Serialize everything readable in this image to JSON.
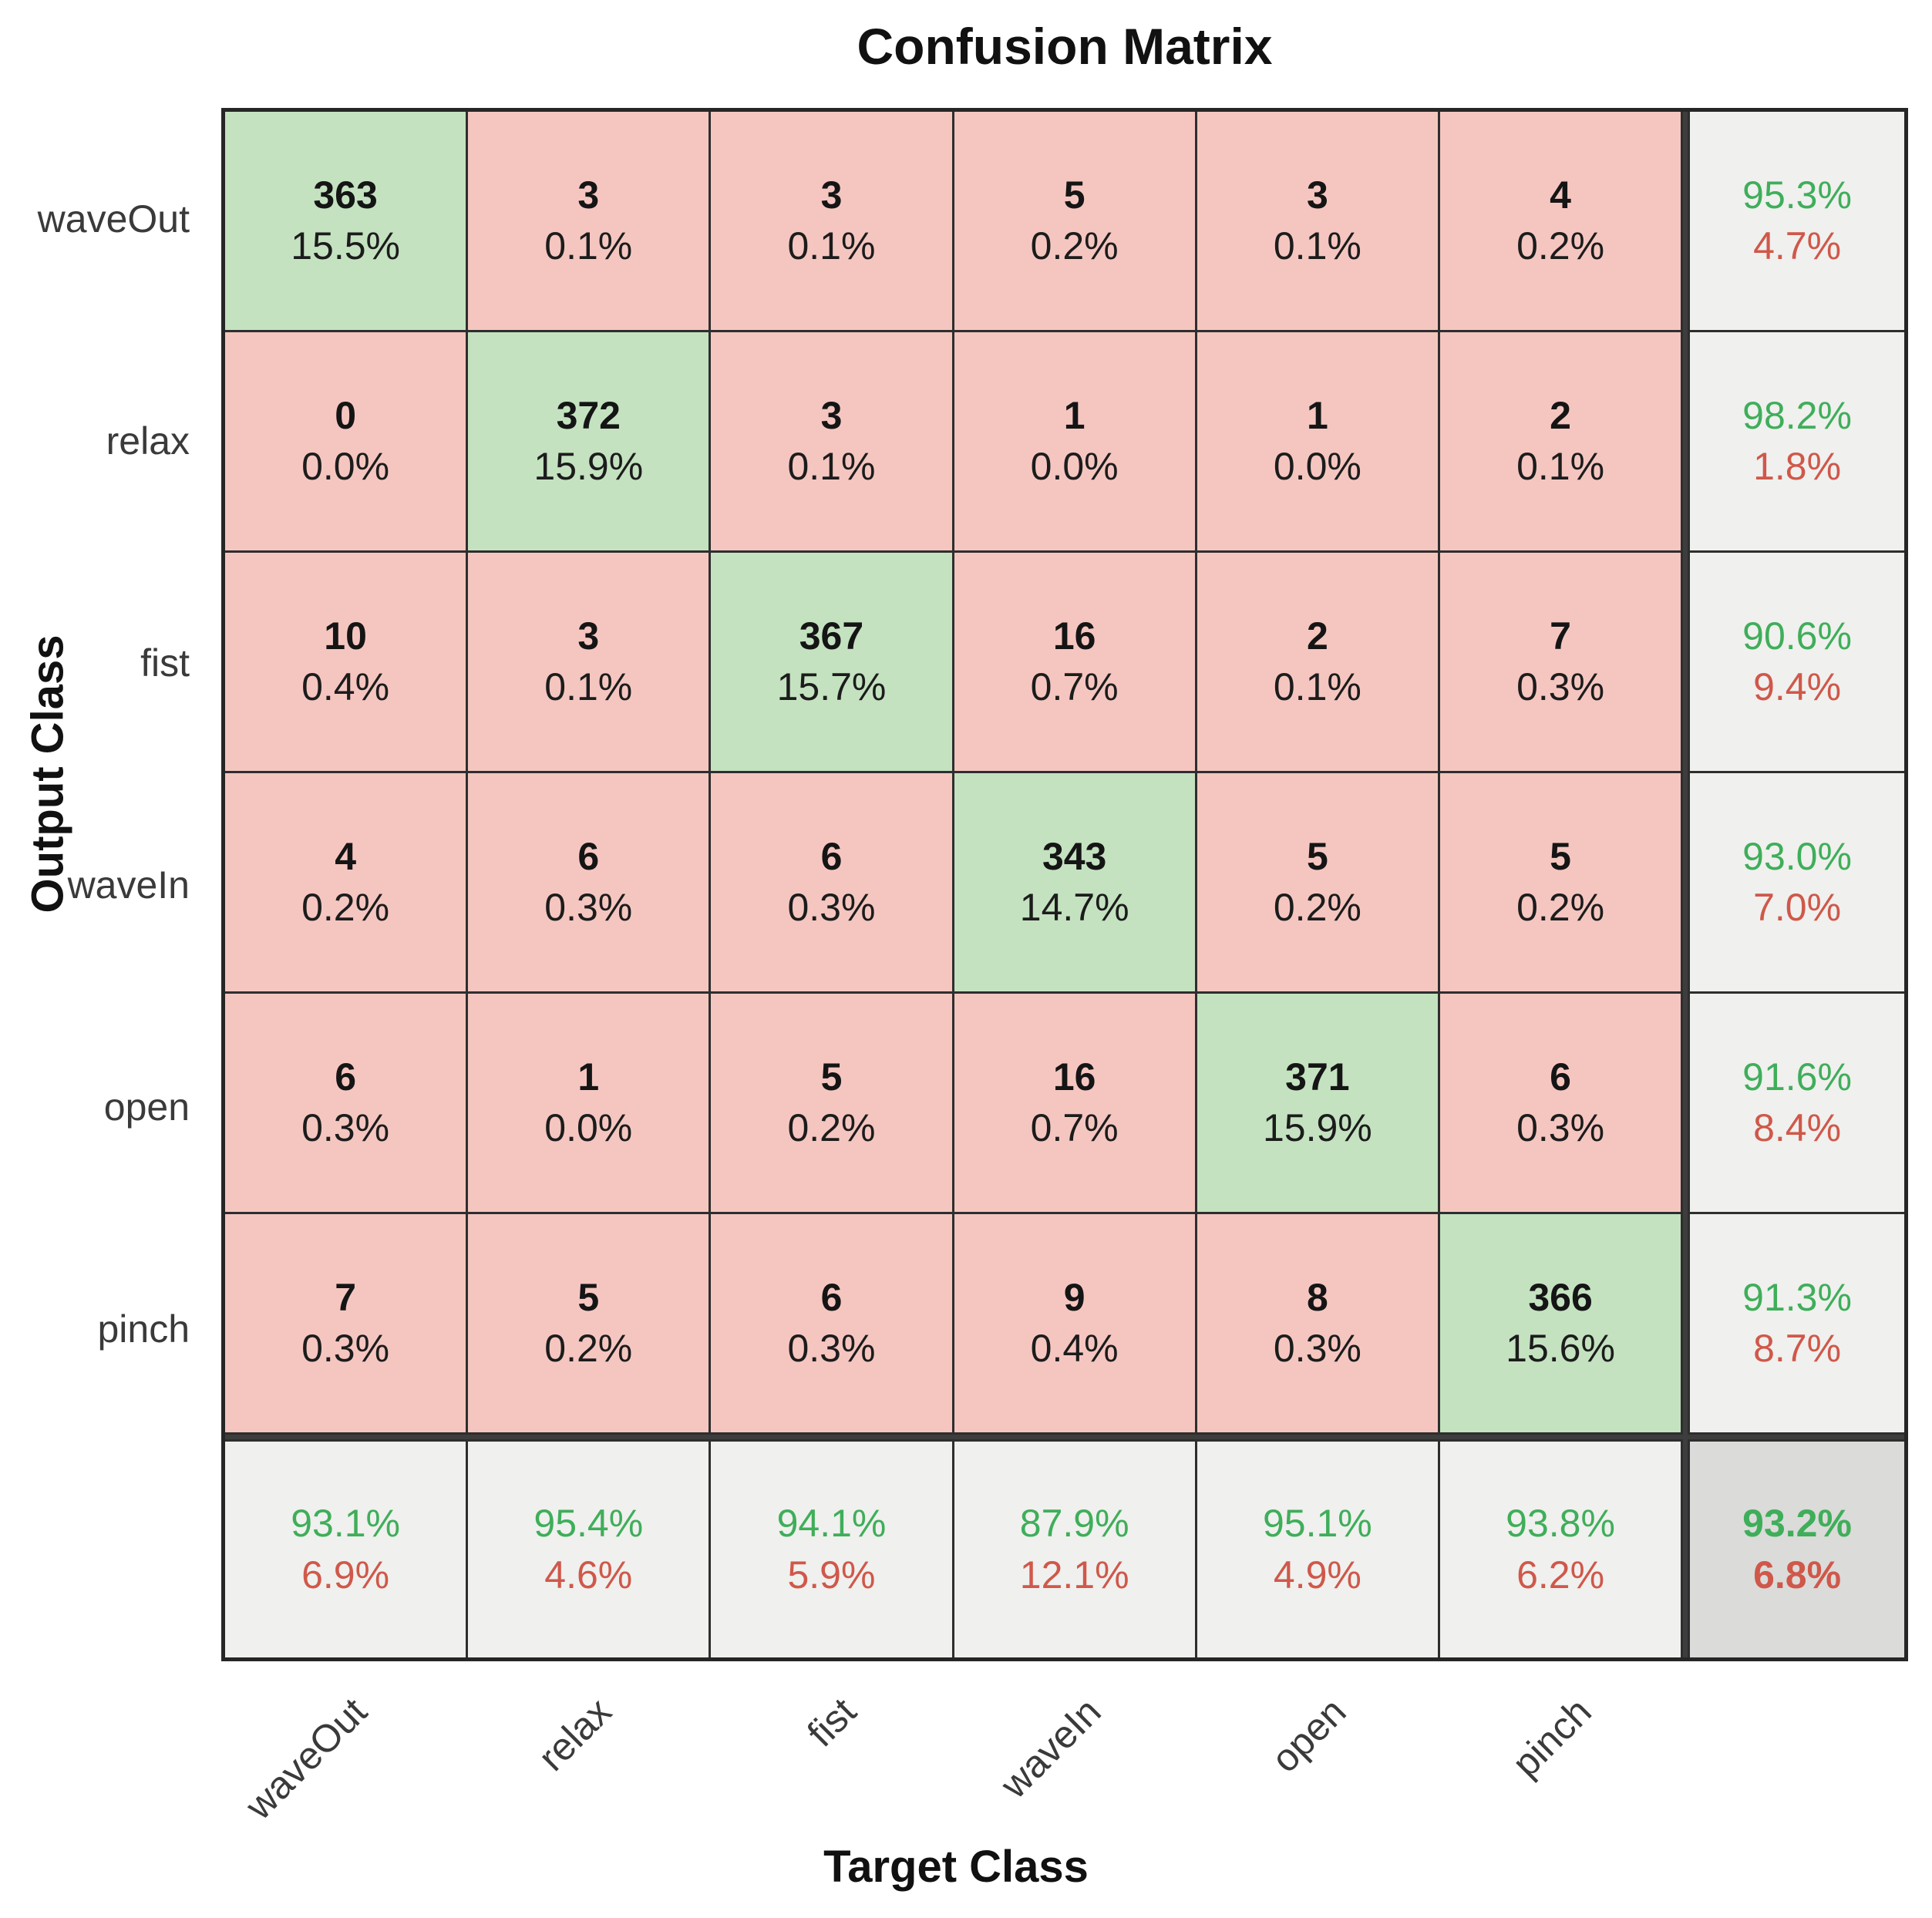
{
  "title": "Confusion Matrix",
  "x_axis_label": "Target Class",
  "y_axis_label": "Output Class",
  "classes": [
    "waveOut",
    "relax",
    "fist",
    "waveIn",
    "open",
    "pinch"
  ],
  "chart_data": {
    "type": "heatmap",
    "title": "Confusion Matrix",
    "xlabel": "Target Class",
    "ylabel": "Output Class",
    "x_categories": [
      "waveOut",
      "relax",
      "fist",
      "waveIn",
      "open",
      "pinch"
    ],
    "y_categories": [
      "waveOut",
      "relax",
      "fist",
      "waveIn",
      "open",
      "pinch"
    ],
    "counts": [
      [
        363,
        3,
        3,
        5,
        3,
        4
      ],
      [
        0,
        372,
        3,
        1,
        1,
        2
      ],
      [
        10,
        3,
        367,
        16,
        2,
        7
      ],
      [
        4,
        6,
        6,
        343,
        5,
        5
      ],
      [
        6,
        1,
        5,
        16,
        371,
        6
      ],
      [
        7,
        5,
        6,
        9,
        8,
        366
      ]
    ],
    "cell_percents": [
      [
        "15.5%",
        "0.1%",
        "0.1%",
        "0.2%",
        "0.1%",
        "0.2%"
      ],
      [
        "0.0%",
        "15.9%",
        "0.1%",
        "0.0%",
        "0.0%",
        "0.1%"
      ],
      [
        "0.4%",
        "0.1%",
        "15.7%",
        "0.7%",
        "0.1%",
        "0.3%"
      ],
      [
        "0.2%",
        "0.3%",
        "0.3%",
        "14.7%",
        "0.2%",
        "0.2%"
      ],
      [
        "0.3%",
        "0.0%",
        "0.2%",
        "0.7%",
        "15.9%",
        "0.3%"
      ],
      [
        "0.3%",
        "0.2%",
        "0.3%",
        "0.4%",
        "0.3%",
        "15.6%"
      ]
    ],
    "row_summary": [
      [
        "95.3%",
        "4.7%"
      ],
      [
        "98.2%",
        "1.8%"
      ],
      [
        "90.6%",
        "9.4%"
      ],
      [
        "93.0%",
        "7.0%"
      ],
      [
        "91.6%",
        "8.4%"
      ],
      [
        "91.3%",
        "8.7%"
      ]
    ],
    "col_summary": [
      [
        "93.1%",
        "6.9%"
      ],
      [
        "95.4%",
        "4.6%"
      ],
      [
        "94.1%",
        "5.9%"
      ],
      [
        "87.9%",
        "12.1%"
      ],
      [
        "95.1%",
        "4.9%"
      ],
      [
        "93.8%",
        "6.2%"
      ]
    ],
    "overall": [
      "93.2%",
      "6.8%"
    ]
  },
  "colors": {
    "diagonal_bg": "#c4e2c0",
    "off_diagonal_bg": "#f5c6c0",
    "summary_bg": "#f0f0ee",
    "corner_bg": "#dbdbd9",
    "positive_text": "#3fae5a",
    "negative_text": "#cf584a",
    "grid_line": "#2e2e2e",
    "divider": "#3d3d3d"
  }
}
